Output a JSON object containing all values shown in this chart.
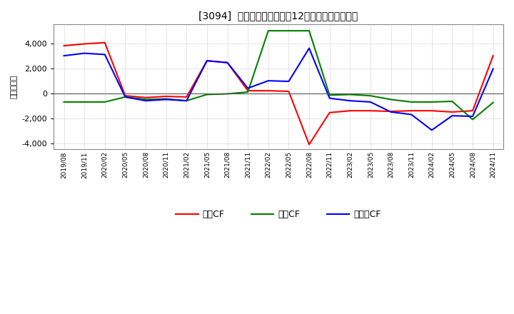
{
  "title": "[3094]  キャッシュフローの12か月移動合計の推移",
  "ylabel": "（百万円）",
  "x_labels": [
    "2019/08",
    "2019/11",
    "2020/02",
    "2020/05",
    "2020/08",
    "2020/11",
    "2021/02",
    "2021/05",
    "2021/08",
    "2021/11",
    "2022/02",
    "2022/05",
    "2022/08",
    "2022/11",
    "2023/02",
    "2023/05",
    "2023/08",
    "2023/11",
    "2024/02",
    "2024/05",
    "2024/08",
    "2024/11"
  ],
  "operating_cf": [
    3800,
    3950,
    4050,
    -200,
    -350,
    -250,
    -300,
    2600,
    2450,
    200,
    200,
    150,
    -4100,
    -1550,
    -1400,
    -1400,
    -1450,
    -1400,
    -1400,
    -1500,
    -1400,
    3000
  ],
  "investing_cf": [
    -700,
    -700,
    -700,
    -300,
    -500,
    -450,
    -600,
    -100,
    -50,
    100,
    5000,
    5000,
    5000,
    -150,
    -100,
    -200,
    -500,
    -700,
    -700,
    -650,
    -2100,
    -750
  ],
  "free_cf": [
    3000,
    3200,
    3100,
    -300,
    -600,
    -500,
    -600,
    2600,
    2450,
    400,
    1000,
    950,
    3600,
    -400,
    -600,
    -700,
    -1500,
    -1700,
    -2950,
    -1800,
    -1850,
    1950
  ],
  "colors": {
    "operating": "#ff0000",
    "investing": "#008000",
    "free": "#0000ff"
  },
  "ylim": [
    -4500,
    5500
  ],
  "yticks": [
    -4000,
    -2000,
    0,
    2000,
    4000
  ],
  "background_color": "#ffffff",
  "plot_bg_color": "#ffffff",
  "grid_color": "#999999",
  "legend_labels": [
    "営業CF",
    "投資CF",
    "フリーCF"
  ]
}
